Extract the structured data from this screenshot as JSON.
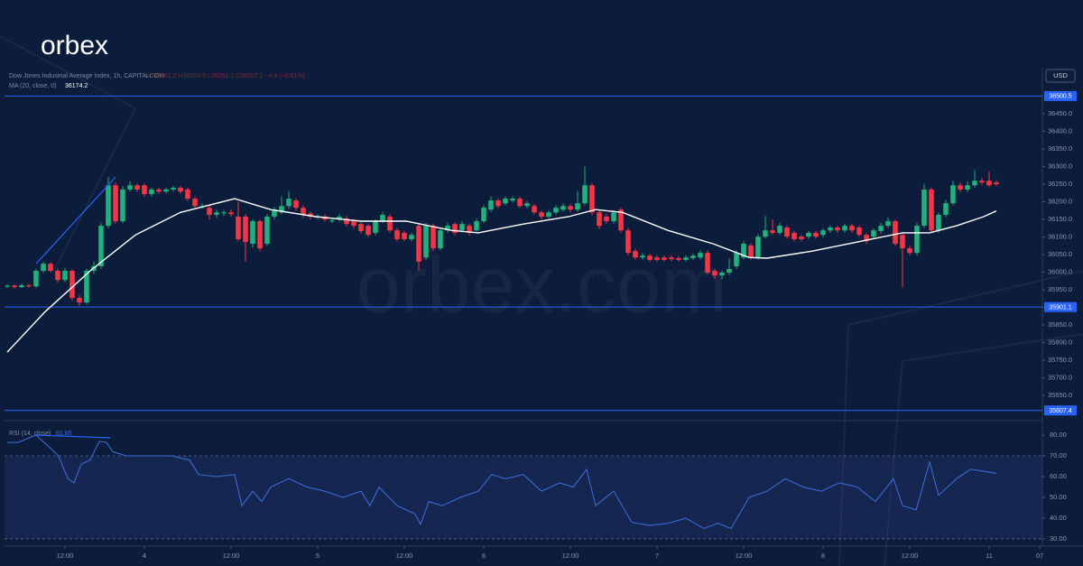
{
  "brand": {
    "logo": "orbex",
    "watermark": "orbex.com"
  },
  "chart_data": {
    "type": "candlestick",
    "title": "Dow Jones Industrial Average Index, 1h, CAPITALCOM",
    "ohlc_legend": "O36261.5 H36264.5 L36251.1 C36257.1 −4.4 (−0.01%)",
    "currency": "USD",
    "up_color": "#22b07d",
    "down_color": "#f23645",
    "x": [
      -20,
      -19,
      -18,
      -17,
      -16,
      -15,
      -14,
      -13,
      -12,
      -11,
      -10,
      -9,
      -8,
      -7,
      -6,
      -5,
      -4,
      -3,
      -2,
      -1,
      0,
      1,
      2,
      3,
      4,
      5,
      6,
      7,
      8,
      9,
      10,
      11,
      12,
      13,
      14,
      15,
      16,
      17,
      18,
      19,
      20,
      21,
      22,
      23,
      24,
      25,
      26,
      27,
      28,
      29,
      30,
      31,
      32,
      33,
      34,
      35,
      36,
      37,
      38,
      39,
      40,
      41,
      42,
      43,
      44,
      45,
      46,
      47,
      48,
      49,
      50,
      51,
      52,
      53,
      54,
      55,
      56,
      57,
      58,
      59,
      60,
      61,
      62,
      63,
      64,
      65,
      66,
      67,
      68,
      69,
      70,
      71,
      72,
      73,
      74,
      75,
      76,
      77,
      78,
      79,
      80,
      81,
      82,
      83,
      84,
      85,
      86,
      87,
      88,
      89,
      90,
      91,
      92,
      93,
      94,
      95,
      96,
      97,
      98,
      99,
      100,
      101,
      102,
      103,
      104,
      105,
      106,
      107,
      108,
      109,
      110,
      111,
      112,
      113,
      114,
      115,
      116,
      117
    ],
    "ohlc": [
      [
        35960,
        35966,
        35955,
        35962
      ],
      [
        35962,
        35965,
        35953,
        35958
      ],
      [
        35958,
        35968,
        35955,
        35963
      ],
      [
        35963,
        35967,
        35956,
        35960
      ],
      [
        35960,
        36010,
        35955,
        36004
      ],
      [
        36004,
        36030,
        35998,
        36024
      ],
      [
        36024,
        36028,
        36000,
        36004
      ],
      [
        36004,
        36010,
        35970,
        35978
      ],
      [
        35978,
        36012,
        35972,
        36004
      ],
      [
        36004,
        36008,
        35920,
        35927
      ],
      [
        35927,
        35935,
        35905,
        35914
      ],
      [
        35914,
        36010,
        35910,
        36004
      ],
      [
        36004,
        36030,
        35995,
        36017
      ],
      [
        36017,
        36140,
        36010,
        36132
      ],
      [
        36132,
        36270,
        36125,
        36247
      ],
      [
        36247,
        36255,
        36138,
        36145
      ],
      [
        36145,
        36245,
        36140,
        36235
      ],
      [
        36235,
        36258,
        36228,
        36247
      ],
      [
        36247,
        36252,
        36228,
        36235
      ],
      [
        36247,
        36252,
        36215,
        36222
      ],
      [
        36222,
        36240,
        36215,
        36235
      ],
      [
        36235,
        36240,
        36222,
        36229
      ],
      [
        36229,
        36240,
        36224,
        36235
      ],
      [
        36235,
        36245,
        36230,
        36240
      ],
      [
        36240,
        36244,
        36222,
        36229
      ],
      [
        36235,
        36240,
        36202,
        36209
      ],
      [
        36209,
        36215,
        36180,
        36188
      ],
      [
        36188,
        36195,
        36180,
        36188
      ],
      [
        36183,
        36190,
        36150,
        36163
      ],
      [
        36163,
        36178,
        36155,
        36170
      ],
      [
        36170,
        36176,
        36160,
        36170
      ],
      [
        36170,
        36180,
        36158,
        36165
      ],
      [
        36158,
        36200,
        36088,
        36094
      ],
      [
        36158,
        36165,
        36030,
        36086
      ],
      [
        36081,
        36150,
        36070,
        36145
      ],
      [
        36145,
        36150,
        36060,
        36068
      ],
      [
        36081,
        36165,
        36075,
        36158
      ],
      [
        36158,
        36185,
        36150,
        36178
      ],
      [
        36170,
        36215,
        36165,
        36188
      ],
      [
        36188,
        36230,
        36180,
        36209
      ],
      [
        36204,
        36210,
        36175,
        36183
      ],
      [
        36183,
        36190,
        36155,
        36163
      ],
      [
        36167,
        36172,
        36150,
        36158
      ],
      [
        36158,
        36165,
        36150,
        36158
      ],
      [
        36158,
        36164,
        36144,
        36150
      ],
      [
        36147,
        36155,
        36140,
        36147
      ],
      [
        36150,
        36165,
        36145,
        36158
      ],
      [
        36153,
        36160,
        36130,
        36137
      ],
      [
        36145,
        36150,
        36125,
        36132
      ],
      [
        36137,
        36142,
        36110,
        36117
      ],
      [
        36132,
        36138,
        36100,
        36106
      ],
      [
        36112,
        36150,
        36105,
        36145
      ],
      [
        36145,
        36170,
        36140,
        36163
      ],
      [
        36158,
        36165,
        36112,
        36119
      ],
      [
        36119,
        36125,
        36088,
        36094
      ],
      [
        36112,
        36118,
        36088,
        36094
      ],
      [
        36094,
        36112,
        36088,
        36106
      ],
      [
        36132,
        36140,
        36005,
        36030
      ],
      [
        36042,
        36140,
        36035,
        36132
      ],
      [
        36132,
        36138,
        36060,
        36068
      ],
      [
        36068,
        36125,
        36062,
        36119
      ],
      [
        36119,
        36140,
        36112,
        36132
      ],
      [
        36137,
        36142,
        36105,
        36112
      ],
      [
        36119,
        36145,
        36112,
        36137
      ],
      [
        36132,
        36138,
        36105,
        36112
      ],
      [
        36119,
        36152,
        36112,
        36145
      ],
      [
        36145,
        36190,
        36140,
        36183
      ],
      [
        36178,
        36215,
        36172,
        36204
      ],
      [
        36204,
        36210,
        36182,
        36188
      ],
      [
        36196,
        36215,
        36190,
        36209
      ],
      [
        36204,
        36215,
        36198,
        36209
      ],
      [
        36209,
        36214,
        36182,
        36188
      ],
      [
        36188,
        36202,
        36182,
        36196
      ],
      [
        36188,
        36194,
        36164,
        36170
      ],
      [
        36170,
        36176,
        36150,
        36158
      ],
      [
        36158,
        36176,
        36152,
        36170
      ],
      [
        36170,
        36190,
        36164,
        36183
      ],
      [
        36178,
        36195,
        36172,
        36188
      ],
      [
        36188,
        36194,
        36170,
        36178
      ],
      [
        36178,
        36230,
        36172,
        36196
      ],
      [
        36196,
        36300,
        36190,
        36247
      ],
      [
        36247,
        36252,
        36162,
        36170
      ],
      [
        36170,
        36176,
        36122,
        36132
      ],
      [
        36158,
        36165,
        36138,
        36145
      ],
      [
        36145,
        36176,
        36138,
        36170
      ],
      [
        36178,
        36184,
        36112,
        36119
      ],
      [
        36119,
        36125,
        36048,
        36055
      ],
      [
        36060,
        36066,
        36036,
        36042
      ],
      [
        36042,
        36054,
        36036,
        36047
      ],
      [
        36047,
        36052,
        36030,
        36035
      ],
      [
        36042,
        36048,
        36030,
        36035
      ],
      [
        36042,
        36048,
        36030,
        36035
      ],
      [
        36042,
        36048,
        36032,
        36037
      ],
      [
        36040,
        36046,
        36030,
        36035
      ],
      [
        36035,
        36048,
        36030,
        36042
      ],
      [
        36040,
        36053,
        36035,
        36047
      ],
      [
        36042,
        36062,
        36036,
        36055
      ],
      [
        36055,
        36062,
        35993,
        35999
      ],
      [
        36004,
        36010,
        35982,
        35991
      ],
      [
        35991,
        36005,
        35980,
        35999
      ],
      [
        35999,
        36040,
        35992,
        36009
      ],
      [
        36017,
        36062,
        36010,
        36055
      ],
      [
        36042,
        36088,
        36036,
        36081
      ],
      [
        36076,
        36082,
        36036,
        36042
      ],
      [
        36042,
        36108,
        36036,
        36101
      ],
      [
        36101,
        36160,
        36095,
        36119
      ],
      [
        36119,
        36150,
        36106,
        36112
      ],
      [
        36112,
        36140,
        36106,
        36132
      ],
      [
        36127,
        36133,
        36095,
        36101
      ],
      [
        36112,
        36118,
        36088,
        36094
      ],
      [
        36101,
        36106,
        36088,
        36094
      ],
      [
        36101,
        36118,
        36095,
        36112
      ],
      [
        36112,
        36118,
        36095,
        36101
      ],
      [
        36106,
        36125,
        36100,
        36119
      ],
      [
        36119,
        36133,
        36112,
        36127
      ],
      [
        36127,
        36133,
        36113,
        36119
      ],
      [
        36119,
        36138,
        36112,
        36132
      ],
      [
        36132,
        36138,
        36112,
        36119
      ],
      [
        36127,
        36133,
        36100,
        36106
      ],
      [
        36106,
        36112,
        36080,
        36088
      ],
      [
        36101,
        36125,
        36095,
        36119
      ],
      [
        36117,
        36140,
        36110,
        36132
      ],
      [
        36132,
        36155,
        36126,
        36145
      ],
      [
        36145,
        36150,
        36075,
        36081
      ],
      [
        36106,
        36112,
        35957,
        36068
      ],
      [
        36068,
        36075,
        36048,
        36055
      ],
      [
        36055,
        36140,
        36048,
        36132
      ],
      [
        36132,
        36250,
        36126,
        36235
      ],
      [
        36235,
        36240,
        36112,
        36119
      ],
      [
        36119,
        36170,
        36112,
        36163
      ],
      [
        36163,
        36205,
        36156,
        36196
      ],
      [
        36196,
        36260,
        36190,
        36247
      ],
      [
        36247,
        36255,
        36228,
        36235
      ],
      [
        36235,
        36258,
        36228,
        36247
      ],
      [
        36247,
        36290,
        36240,
        36260
      ],
      [
        36260,
        36268,
        36248,
        36255
      ],
      [
        36260,
        36285,
        36242,
        36247
      ],
      [
        36255,
        36262,
        36245,
        36250
      ]
    ],
    "xlim": [
      -20.375,
      123.375
    ],
    "xticks": [
      {
        "value": -12,
        "label": "12:00"
      },
      {
        "value": -1,
        "label": "4"
      },
      {
        "value": 11,
        "label": "12:00"
      },
      {
        "value": 23,
        "label": "5"
      },
      {
        "value": 35,
        "label": "12:00"
      },
      {
        "value": 46,
        "label": "6"
      },
      {
        "value": 58,
        "label": "12:00"
      },
      {
        "value": 70,
        "label": "7"
      },
      {
        "value": 82,
        "label": "12:00"
      },
      {
        "value": 93,
        "label": "8"
      },
      {
        "value": 105,
        "label": "12:00"
      },
      {
        "value": 116,
        "label": "11"
      },
      {
        "value": 123,
        "label": "07"
      }
    ],
    "ylim": [
      35581,
      36581
    ],
    "yticks": [
      {
        "value": 35650,
        "label": "35650.0"
      },
      {
        "value": 35700,
        "label": "35700.0"
      },
      {
        "value": 35750,
        "label": "35750.0"
      },
      {
        "value": 35800,
        "label": "35800.0"
      },
      {
        "value": 35850,
        "label": "35850.0"
      },
      {
        "value": 35900,
        "label": "35900.0"
      },
      {
        "value": 35950,
        "label": "35950.0"
      },
      {
        "value": 36000,
        "label": "36000.0"
      },
      {
        "value": 36050,
        "label": "36050.0"
      },
      {
        "value": 36100,
        "label": "36100.0"
      },
      {
        "value": 36150,
        "label": "36150.0"
      },
      {
        "value": 36200,
        "label": "36200.0"
      },
      {
        "value": 36250,
        "label": "36250.0"
      },
      {
        "value": 36300,
        "label": "36300.0"
      },
      {
        "value": 36350,
        "label": "36350.0"
      },
      {
        "value": 36400,
        "label": "36400.0"
      },
      {
        "value": 36450,
        "label": "36450.0"
      }
    ],
    "levels": [
      36500.5,
      35901.1,
      35607.4
    ],
    "level_color": "#2962ff",
    "trendlines": [
      {
        "x": [
          -16,
          -5
        ],
        "y": [
          36024,
          36270
        ]
      }
    ],
    "ma": {
      "name": "MA (20, close, 0)",
      "last": 36174.2,
      "color": "#ffffff",
      "x": [
        -20,
        -14.75,
        -8.5,
        -2.25,
        4,
        11.5,
        16.5,
        22.75,
        29,
        35.25,
        41.5,
        45.25,
        51.5,
        57.75,
        61.5,
        65.25,
        71.5,
        77.75,
        82.75,
        85.25,
        91.5,
        97.75,
        104,
        107.75,
        111.5,
        115.25,
        117
      ],
      "values": [
        35773,
        35888,
        36004,
        36106,
        36170,
        36209,
        36178,
        36158,
        36145,
        36145,
        36119,
        36112,
        36137,
        36158,
        36178,
        36170,
        36119,
        36081,
        36042,
        36040,
        36060,
        36086,
        36112,
        36112,
        36132,
        36158,
        36174
      ]
    },
    "rsi": {
      "name": "RSI (14, close)",
      "last": 61.65,
      "color": "#3f6fe0",
      "ylim": [
        26.5,
        86.1
      ],
      "yticks": [
        {
          "value": 30,
          "label": "30.00"
        },
        {
          "value": 40,
          "label": "40.00"
        },
        {
          "value": 50,
          "label": "50.00"
        },
        {
          "value": 60,
          "label": "60.00"
        },
        {
          "value": 70,
          "label": "70.00"
        },
        {
          "value": 80,
          "label": "80.00"
        }
      ],
      "band": [
        30,
        70
      ],
      "x": [
        -20,
        -18.5,
        -16,
        -14.1,
        -12.9,
        -11.6,
        -10.75,
        -9.75,
        -8.5,
        -7.25,
        -6.25,
        -5.4,
        -3.5,
        -1,
        2.75,
        5.25,
        6.5,
        9,
        11.5,
        12.5,
        14,
        15.25,
        16.5,
        19,
        21.5,
        24,
        26.5,
        29,
        30.25,
        31.5,
        34,
        36.5,
        37.25,
        38.4,
        40.25,
        42.75,
        45.25,
        47.1,
        49,
        51.5,
        54,
        56.5,
        58.4,
        60.25,
        61.5,
        64,
        66.5,
        69,
        71.5,
        74,
        76.5,
        78.4,
        80.25,
        82.75,
        85.25,
        87.75,
        90.25,
        92.75,
        95.25,
        97.75,
        100.25,
        102.75,
        104,
        105.9,
        107.75,
        109,
        111.5,
        113.4,
        115.25,
        117
      ],
      "values": [
        76.5,
        76.5,
        80,
        74,
        70,
        59,
        57,
        66,
        68,
        77,
        76.5,
        72,
        70,
        70,
        70,
        68,
        61,
        60,
        61,
        46,
        53,
        48,
        55,
        59,
        55,
        53,
        50,
        53,
        46,
        55,
        46,
        42,
        37,
        48,
        46,
        50,
        53,
        61,
        59,
        61,
        53,
        57,
        55,
        63.5,
        46,
        53,
        38,
        36.5,
        37.5,
        40,
        35,
        37.5,
        35,
        50,
        53,
        59,
        55,
        53,
        57,
        55,
        48,
        59,
        46,
        44,
        67,
        51,
        59,
        63.5,
        62.6,
        61.65
      ],
      "trendlines": [
        {
          "x": [
            -16,
            -5.75
          ],
          "y": [
            80,
            78.7
          ]
        }
      ]
    }
  }
}
